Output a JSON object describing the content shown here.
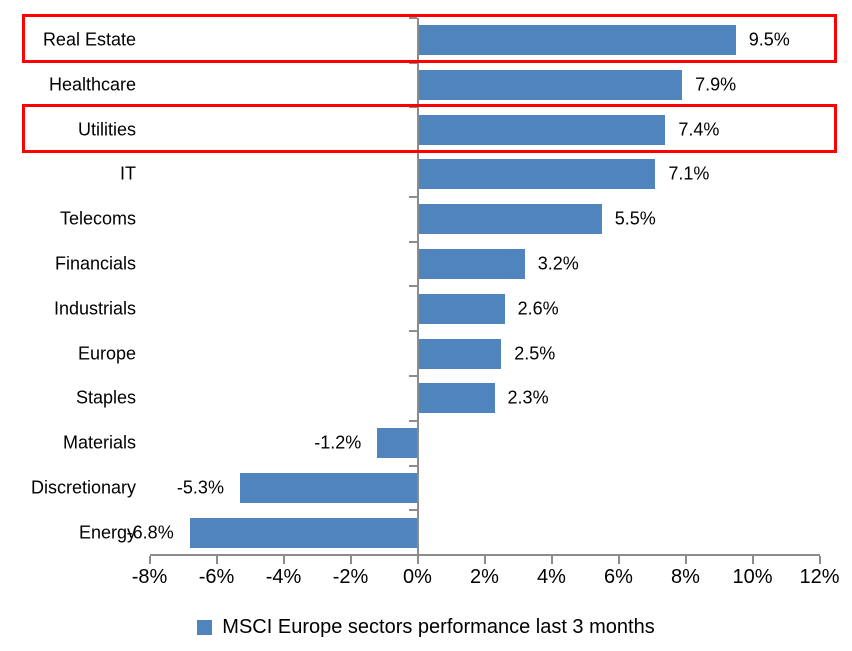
{
  "chart_data": {
    "type": "bar",
    "orientation": "horizontal",
    "title": "",
    "xlabel": "",
    "ylabel": "",
    "categories": [
      "Real Estate",
      "Healthcare",
      "Utilities",
      "IT",
      "Telecoms",
      "Financials",
      "Industrials",
      "Europe",
      "Staples",
      "Materials",
      "Discretionary",
      "Energy"
    ],
    "values": [
      9.5,
      7.9,
      7.4,
      7.1,
      5.5,
      3.2,
      2.6,
      2.5,
      2.3,
      -1.2,
      -5.3,
      -6.8
    ],
    "data_labels": [
      "9.5%",
      "7.9%",
      "7.4%",
      "7.1%",
      "5.5%",
      "3.2%",
      "2.6%",
      "2.5%",
      "2.3%",
      "-1.2%",
      "-5.3%",
      "-6.8%"
    ],
    "highlighted_rows": [
      0,
      2
    ],
    "highlighted_categories": [
      "Real Estate",
      "Utilities"
    ],
    "x_ticks": [
      "-8%",
      "-6%",
      "-4%",
      "-2%",
      "0%",
      "2%",
      "4%",
      "6%",
      "8%",
      "10%",
      "12%"
    ],
    "x_tick_values": [
      -8,
      -6,
      -4,
      -2,
      0,
      2,
      4,
      6,
      8,
      10,
      12
    ],
    "xlim": [
      -8,
      12
    ],
    "grid": false,
    "legend": "MSCI Europe sectors performance last 3 months",
    "legend_position": "bottom",
    "bar_color": "#4F84BD",
    "highlight_box_color": "#FF0000",
    "axis_color": "#8C8C8C",
    "text_color": "#000000"
  }
}
